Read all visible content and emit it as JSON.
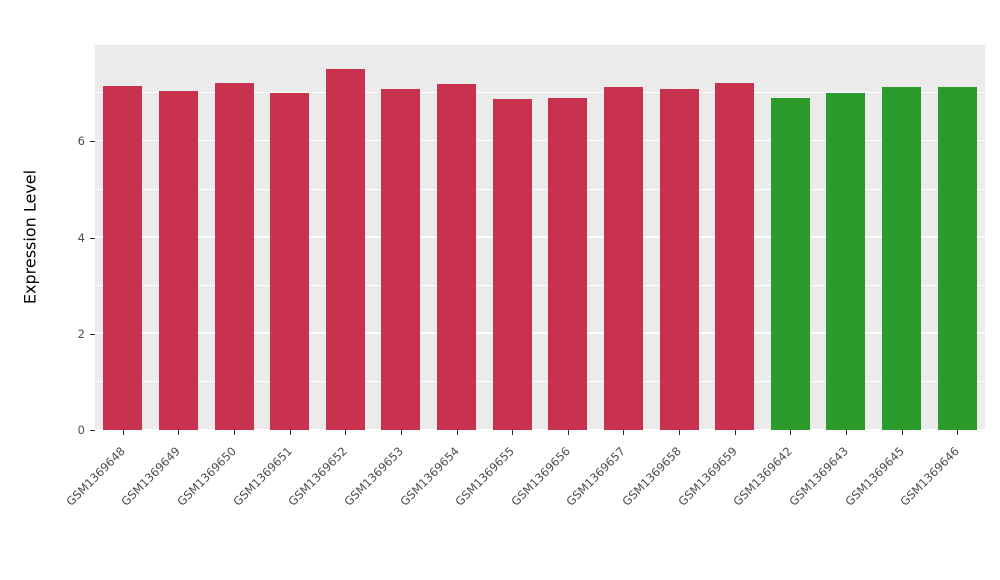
{
  "chart_data": {
    "type": "bar",
    "title": "",
    "xlabel": "",
    "ylabel": "Expression Level",
    "categories": [
      "GSM1369648",
      "GSM1369649",
      "GSM1369650",
      "GSM1369651",
      "GSM1369652",
      "GSM1369653",
      "GSM1369654",
      "GSM1369655",
      "GSM1369656",
      "GSM1369657",
      "GSM1369658",
      "GSM1369659",
      "GSM1369642",
      "GSM1369643",
      "GSM1369645",
      "GSM1369646"
    ],
    "values": [
      7.15,
      7.05,
      7.22,
      7.0,
      7.5,
      7.08,
      7.2,
      6.88,
      6.9,
      7.12,
      7.08,
      7.22,
      6.9,
      7.0,
      7.12,
      7.12
    ],
    "bar_groups": [
      "red",
      "red",
      "red",
      "red",
      "red",
      "red",
      "red",
      "red",
      "red",
      "red",
      "red",
      "red",
      "green",
      "green",
      "green",
      "green"
    ],
    "group_colors": {
      "red": "#C8324E",
      "green": "#2B9C2B"
    },
    "ylim": [
      0,
      8
    ],
    "yticks": [
      0,
      2,
      4,
      6
    ],
    "minor_gridlines": [
      1,
      3,
      5,
      7
    ],
    "panel_background": "#EBEBEB",
    "grid_color": "#FFFFFF",
    "legend": "none",
    "grid": "on"
  }
}
